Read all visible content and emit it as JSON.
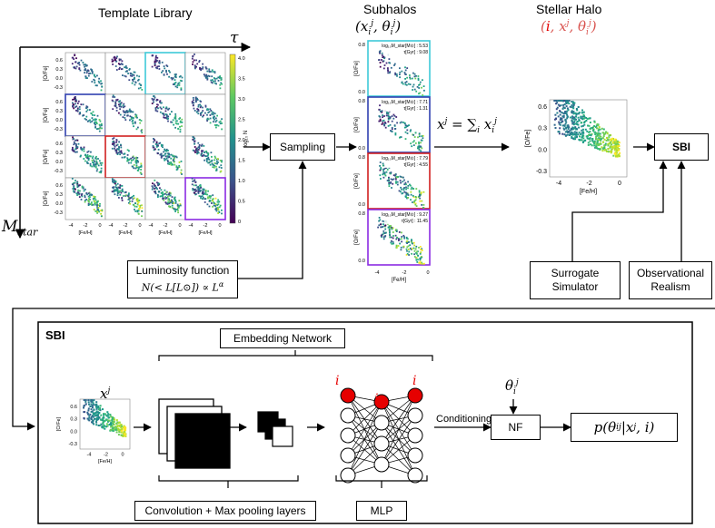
{
  "headings": {
    "template_library": "Template Library",
    "subhalos": "Subhalos",
    "subhalos_math": "(x",
    "stellar_halo": "Stellar Halo",
    "stellar_halo_math_i": "i",
    "sbi_panel": "SBI"
  },
  "axes": {
    "tau": "τ",
    "mstar": "M",
    "mstar_sub": "star"
  },
  "boxes": {
    "sampling": "Sampling",
    "sbi": "SBI",
    "lum_title": "Luminosity function",
    "lum_formula": "N(< L[L⊙]) ∝ L",
    "lum_formula_sup": "α",
    "surrogate_line1": "Surrogate",
    "surrogate_line2": "Simulator",
    "obs_line1": "Observational",
    "obs_line2": "Realism",
    "embedding": "Embedding Network",
    "conv": "Convolution + Max pooling layers",
    "mlp": "MLP",
    "nf": "NF",
    "posterior": "p(θ",
    "posterior_tail": "|x",
    "posterior_end": ", i)"
  },
  "labels": {
    "sum_eq": "x",
    "sum_rhs": "= ∑",
    "xj": "x",
    "conditioning": "Conditioning",
    "theta": "θ",
    "i_node": "i"
  },
  "plot_labels": {
    "ofe": "[O/Fe]",
    "feh": "[Fe/H]",
    "colorbar": "log₁₀ N",
    "cb_ticks": [
      "4.0",
      "3.5",
      "3.0",
      "2.5",
      "2.0",
      "1.5",
      "1.0",
      "0.5",
      "0"
    ],
    "y_ticks_small": [
      "0.6",
      "0.3",
      "0.0",
      "-0.3"
    ],
    "x_ticks_small": [
      "-4",
      "-2",
      "0"
    ],
    "y_ticks_sub": [
      "0.8",
      "0.6",
      "0.4",
      "0.2",
      "0.0"
    ],
    "x_ticks_halo": [
      "-4",
      "-2",
      "0"
    ],
    "y_ticks_halo": [
      "0.6",
      "0.3",
      "0.0",
      "-0.3"
    ]
  },
  "subhalo_annotations": [
    {
      "mass": "log₁₀M_star[M⊙] : 5.53",
      "tau": "τ[Gyr] : 9.08"
    },
    {
      "mass": "log₁₀M_star[M⊙] : 7.71",
      "tau": "τ[Gyr] : 1.31"
    },
    {
      "mass": "log₁₀M_star[M⊙] : 7.79",
      "tau": "τ[Gyr] : 4.55"
    },
    {
      "mass": "log₁₀M_star[M⊙] : 9.27",
      "tau": "τ[Gyr] : 11.45"
    }
  ],
  "colors": {
    "accent_red": "#e60000",
    "cyan_frame": "#3ec9d8",
    "blue_frame": "#3040b0",
    "red_frame": "#d02020",
    "purple_frame": "#8a2be2"
  }
}
